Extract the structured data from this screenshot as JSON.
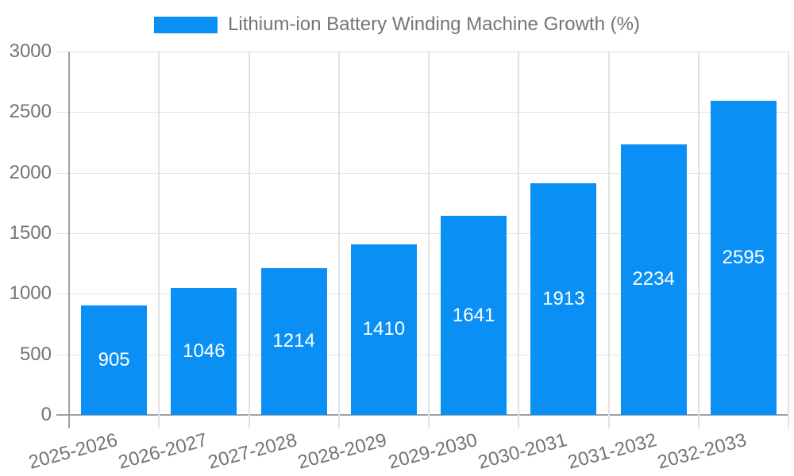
{
  "legend": {
    "label": "Lithium-ion Battery Winding Machine Growth (%)"
  },
  "chart_data": {
    "type": "bar",
    "title": "Lithium-ion Battery Winding Machine Growth (%)",
    "categories": [
      "2025-2026",
      "2026-2027",
      "2027-2028",
      "2028-2029",
      "2029-2030",
      "2030-2031",
      "2031-2032",
      "2032-2033"
    ],
    "values": [
      905,
      1046,
      1214,
      1410,
      1641,
      1913,
      2234,
      2595
    ],
    "xlabel": "",
    "ylabel": "",
    "ylim": [
      0,
      3000
    ],
    "ytick_step": 500,
    "yticks": [
      0,
      500,
      1000,
      1500,
      2000,
      2500,
      3000
    ],
    "grid": true,
    "legend_position": "top-center",
    "x_tick_rotation_deg": -15,
    "value_labels": "inside-center"
  },
  "colors": {
    "background": "#FFFFFF",
    "bar_fill": "#0A90F5",
    "value_label_text": "#FFFFFF",
    "text_gray": "#747474",
    "grid_line": "#E2E2E2",
    "axis_line": "#A0A0A0"
  }
}
